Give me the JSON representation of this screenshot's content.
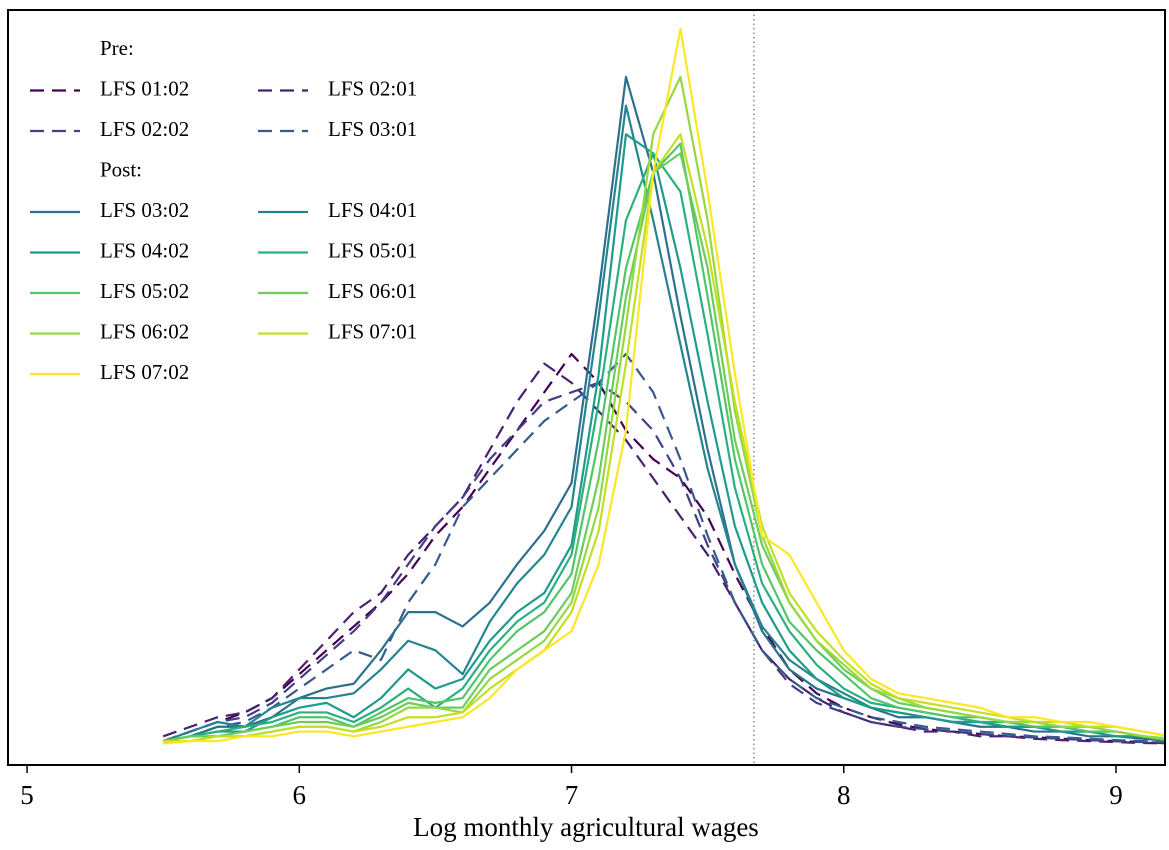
{
  "chart_data": {
    "type": "line",
    "xlabel": "Log monthly agricultural wages",
    "xlim": [
      4.93,
      9.18
    ],
    "xticks": [
      5,
      6,
      7,
      8,
      9
    ],
    "ylim": [
      -0.04,
      1.54
    ],
    "vline": 7.67,
    "x": [
      5.5,
      5.6,
      5.7,
      5.8,
      5.9,
      6.0,
      6.1,
      6.2,
      6.3,
      6.4,
      6.5,
      6.6,
      6.7,
      6.8,
      6.9,
      7.0,
      7.1,
      7.2,
      7.3,
      7.4,
      7.5,
      7.6,
      7.7,
      7.8,
      7.9,
      8.0,
      8.1,
      8.2,
      8.3,
      8.4,
      8.5,
      8.6,
      8.7,
      8.8,
      8.9,
      9.0,
      9.1,
      9.2
    ],
    "series_groups": [
      {
        "name": "Pre:",
        "line_style": "dashed",
        "series": [
          {
            "name": "LFS 01:02",
            "color": "#440154",
            "values": [
              0.01,
              0.03,
              0.05,
              0.07,
              0.1,
              0.15,
              0.2,
              0.25,
              0.3,
              0.36,
              0.44,
              0.5,
              0.58,
              0.66,
              0.74,
              0.82,
              0.76,
              0.66,
              0.6,
              0.56,
              0.48,
              0.36,
              0.25,
              0.16,
              0.11,
              0.08,
              0.06,
              0.045,
              0.035,
              0.03,
              0.025,
              0.02,
              0.018,
              0.015,
              0.012,
              0.01,
              0.008,
              0.005
            ]
          },
          {
            "name": "LFS 02:01",
            "color": "#482173",
            "values": [
              0.02,
              0.04,
              0.06,
              0.07,
              0.1,
              0.16,
              0.22,
              0.28,
              0.32,
              0.4,
              0.46,
              0.52,
              0.62,
              0.72,
              0.8,
              0.76,
              0.7,
              0.64,
              0.56,
              0.48,
              0.4,
              0.3,
              0.2,
              0.14,
              0.1,
              0.07,
              0.05,
              0.04,
              0.03,
              0.03,
              0.02,
              0.02,
              0.015,
              0.012,
              0.01,
              0.008,
              0.006,
              0.005
            ]
          },
          {
            "name": "LFS 02:02",
            "color": "#433e85",
            "values": [
              0.01,
              0.03,
              0.05,
              0.06,
              0.09,
              0.14,
              0.19,
              0.24,
              0.3,
              0.38,
              0.46,
              0.52,
              0.6,
              0.66,
              0.72,
              0.74,
              0.76,
              0.72,
              0.66,
              0.56,
              0.42,
              0.3,
              0.2,
              0.13,
              0.09,
              0.07,
              0.05,
              0.04,
              0.035,
              0.03,
              0.025,
              0.02,
              0.018,
              0.015,
              0.012,
              0.01,
              0.008,
              0.006
            ]
          },
          {
            "name": "LFS 03:01",
            "color": "#38598c",
            "values": [
              0.01,
              0.02,
              0.04,
              0.05,
              0.08,
              0.12,
              0.16,
              0.2,
              0.18,
              0.3,
              0.38,
              0.5,
              0.56,
              0.62,
              0.68,
              0.72,
              0.76,
              0.82,
              0.74,
              0.6,
              0.44,
              0.3,
              0.2,
              0.14,
              0.1,
              0.08,
              0.06,
              0.05,
              0.04,
              0.035,
              0.03,
              0.025,
              0.02,
              0.018,
              0.015,
              0.012,
              0.01,
              0.008
            ]
          }
        ]
      },
      {
        "name": "Post:",
        "line_style": "solid",
        "series": [
          {
            "name": "LFS 03:02",
            "color": "#2d708e",
            "values": [
              0.01,
              0.02,
              0.04,
              0.04,
              0.06,
              0.1,
              0.12,
              0.13,
              0.2,
              0.28,
              0.28,
              0.25,
              0.3,
              0.38,
              0.45,
              0.55,
              0.95,
              1.4,
              1.2,
              0.9,
              0.62,
              0.38,
              0.24,
              0.16,
              0.12,
              0.1,
              0.08,
              0.06,
              0.06,
              0.05,
              0.04,
              0.04,
              0.03,
              0.03,
              0.02,
              0.02,
              0.015,
              0.01
            ]
          },
          {
            "name": "LFS 04:01",
            "color": "#25858e",
            "values": [
              0.01,
              0.03,
              0.05,
              0.04,
              0.08,
              0.1,
              0.1,
              0.11,
              0.16,
              0.22,
              0.2,
              0.15,
              0.26,
              0.34,
              0.4,
              0.5,
              0.9,
              1.34,
              1.1,
              0.84,
              0.58,
              0.38,
              0.25,
              0.18,
              0.14,
              0.11,
              0.08,
              0.07,
              0.06,
              0.05,
              0.05,
              0.04,
              0.04,
              0.03,
              0.03,
              0.02,
              0.02,
              0.01
            ]
          },
          {
            "name": "LFS 04:02",
            "color": "#1e9b8a",
            "values": [
              0.01,
              0.02,
              0.03,
              0.03,
              0.06,
              0.08,
              0.09,
              0.06,
              0.1,
              0.16,
              0.12,
              0.14,
              0.22,
              0.28,
              0.32,
              0.42,
              0.78,
              1.28,
              1.24,
              1.0,
              0.72,
              0.46,
              0.3,
              0.2,
              0.14,
              0.1,
              0.08,
              0.07,
              0.06,
              0.05,
              0.05,
              0.04,
              0.04,
              0.03,
              0.03,
              0.02,
              0.02,
              0.01
            ]
          },
          {
            "name": "LFS 05:01",
            "color": "#2ab07f",
            "values": [
              0.01,
              0.02,
              0.03,
              0.04,
              0.05,
              0.07,
              0.07,
              0.05,
              0.08,
              0.12,
              0.08,
              0.12,
              0.2,
              0.26,
              0.3,
              0.4,
              0.72,
              1.1,
              1.24,
              1.16,
              0.86,
              0.54,
              0.34,
              0.24,
              0.17,
              0.12,
              0.09,
              0.08,
              0.07,
              0.06,
              0.05,
              0.05,
              0.04,
              0.04,
              0.03,
              0.03,
              0.02,
              0.015
            ]
          },
          {
            "name": "LFS 05:02",
            "color": "#52c569",
            "values": [
              0.01,
              0.02,
              0.02,
              0.03,
              0.04,
              0.06,
              0.06,
              0.04,
              0.07,
              0.1,
              0.09,
              0.1,
              0.18,
              0.24,
              0.28,
              0.36,
              0.64,
              1.0,
              1.2,
              1.26,
              0.94,
              0.6,
              0.38,
              0.26,
              0.2,
              0.15,
              0.1,
              0.08,
              0.07,
              0.06,
              0.06,
              0.05,
              0.04,
              0.04,
              0.03,
              0.03,
              0.02,
              0.01
            ]
          },
          {
            "name": "LFS 06:01",
            "color": "#6ccd5a",
            "values": [
              0.01,
              0.02,
              0.02,
              0.03,
              0.04,
              0.05,
              0.05,
              0.04,
              0.06,
              0.09,
              0.08,
              0.08,
              0.16,
              0.2,
              0.24,
              0.32,
              0.56,
              0.94,
              1.2,
              1.24,
              1.0,
              0.64,
              0.42,
              0.3,
              0.22,
              0.16,
              0.12,
              0.09,
              0.08,
              0.07,
              0.06,
              0.05,
              0.05,
              0.04,
              0.04,
              0.03,
              0.02,
              0.015
            ]
          },
          {
            "name": "LFS 06:02",
            "color": "#95d840",
            "values": [
              0.01,
              0.01,
              0.02,
              0.02,
              0.03,
              0.04,
              0.04,
              0.03,
              0.05,
              0.08,
              0.08,
              0.07,
              0.14,
              0.18,
              0.22,
              0.3,
              0.5,
              0.88,
              1.28,
              1.4,
              1.1,
              0.7,
              0.44,
              0.3,
              0.22,
              0.17,
              0.12,
              0.1,
              0.08,
              0.07,
              0.06,
              0.05,
              0.05,
              0.04,
              0.04,
              0.03,
              0.02,
              0.015
            ]
          },
          {
            "name": "LFS 07:01",
            "color": "#c2df23",
            "values": [
              0.01,
              0.01,
              0.02,
              0.02,
              0.03,
              0.04,
              0.04,
              0.03,
              0.04,
              0.06,
              0.06,
              0.07,
              0.12,
              0.16,
              0.2,
              0.28,
              0.45,
              0.8,
              1.2,
              1.28,
              1.04,
              0.72,
              0.46,
              0.32,
              0.24,
              0.18,
              0.13,
              0.1,
              0.09,
              0.08,
              0.07,
              0.06,
              0.05,
              0.05,
              0.04,
              0.04,
              0.03,
              0.02
            ]
          },
          {
            "name": "LFS 07:02",
            "color": "#fde725",
            "values": [
              0.005,
              0.01,
              0.01,
              0.02,
              0.02,
              0.03,
              0.03,
              0.02,
              0.03,
              0.04,
              0.05,
              0.06,
              0.1,
              0.16,
              0.2,
              0.24,
              0.38,
              0.66,
              1.2,
              1.5,
              1.16,
              0.78,
              0.44,
              0.4,
              0.3,
              0.2,
              0.14,
              0.11,
              0.1,
              0.09,
              0.08,
              0.06,
              0.06,
              0.05,
              0.05,
              0.04,
              0.03,
              0.02
            ]
          }
        ]
      }
    ]
  }
}
